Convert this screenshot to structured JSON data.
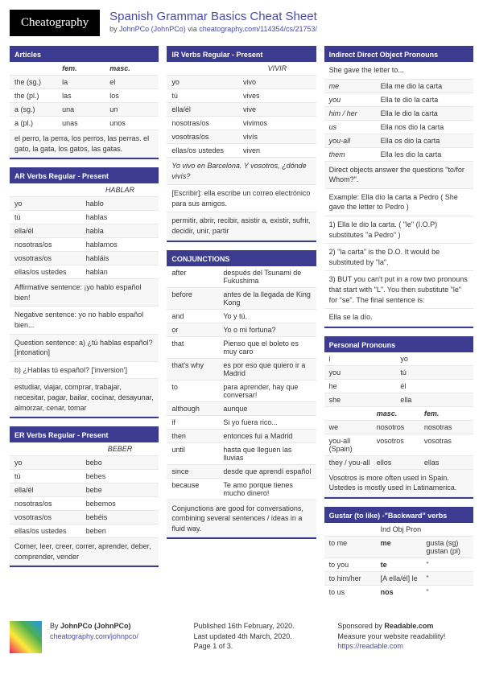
{
  "logo": "Cheatography",
  "title": "Spanish Grammar Basics Cheat Sheet",
  "byline_by": "by ",
  "author": "JohnPCo (JohnPCo)",
  "byline_via": " via ",
  "url": "cheatography.com/114354/cs/21753/",
  "col1": {
    "articles": {
      "title": "Articles",
      "head_fem": "fem.",
      "head_masc": "masc.",
      "rows": [
        {
          "a": "the (sg.)",
          "b": "la",
          "c": "el"
        },
        {
          "a": "the (pl.)",
          "b": "las",
          "c": "los"
        },
        {
          "a": "a (sg.)",
          "b": "una",
          "c": "un"
        },
        {
          "a": "a (pl.)",
          "b": "unas",
          "c": "unos"
        }
      ],
      "note": "el perro, la perra, los perros, las perras. el gato, la gata, los gatos, las gatas."
    },
    "ar": {
      "title": "AR Verbs Regular - Present",
      "stem": "HABLAR",
      "rows": [
        {
          "a": "yo",
          "b": "hablo"
        },
        {
          "a": "tú",
          "b": "hablas"
        },
        {
          "a": "ella/él",
          "b": "habla"
        },
        {
          "a": "nosotras/os",
          "b": "hablamos"
        },
        {
          "a": "vosotras/os",
          "b": "habláis"
        },
        {
          "a": "ellas/os ustedes",
          "b": "hablan"
        }
      ],
      "notes": [
        "Affirmative sentence: ¡yo hablo español bien!",
        "Negative sentence: yo no hablo español bien...",
        "Question sentence: a) ¿tú hablas español? [intonation]",
        "b) ¿Hablas tú español? ['inversion']"
      ],
      "footer": "estudiar, viajar, comprar, trabajar, necesitar, pagar, bailar, cocinar, desayunar, almorzar, cenar, tomar"
    },
    "er": {
      "title": "ER Verbs Regular - Present",
      "stem": "BEBER",
      "rows": [
        {
          "a": "yo",
          "b": "bebo"
        },
        {
          "a": "tú",
          "b": "bebes"
        },
        {
          "a": "ella/él",
          "b": "bebe"
        },
        {
          "a": "nosotras/os",
          "b": "bebemos"
        },
        {
          "a": "vosotras/os",
          "b": "bebéis"
        },
        {
          "a": "ellas/os ustedes",
          "b": "beben"
        }
      ],
      "footer": "Comer, leer, creer, correr, aprender, deber, comprender, vender"
    }
  },
  "col2": {
    "ir": {
      "title": "IR Verbs Regular - Present",
      "stem": "VIVIR",
      "rows": [
        {
          "a": "yo",
          "b": "vivo"
        },
        {
          "a": "tú",
          "b": "vives"
        },
        {
          "a": "ella/él",
          "b": "vive"
        },
        {
          "a": "nosotras/os",
          "b": "vivimos"
        },
        {
          "a": "vosotras/os",
          "b": "vivís"
        },
        {
          "a": "ellas/os ustedes",
          "b": "viven"
        }
      ],
      "notes": [
        "Yo vivo en Barcelona. Y vosotros, ¿dónde vivís?",
        "[Escribir]: ella escribe un correo electrónico para sus amigos."
      ],
      "footer": "permitir, abrir, recibir, asistir a, existir, sufrir, decidir, unir, partir"
    },
    "conj": {
      "title": "CONJUNCTIONS",
      "rows": [
        {
          "a": "after",
          "b": "después del Tsunami de Fukushima"
        },
        {
          "a": "before",
          "b": "antes de la llegada de King Kong"
        },
        {
          "a": "and",
          "b": "Yo y tú."
        },
        {
          "a": "or",
          "b": "Yo o mi fortuna?"
        },
        {
          "a": "that",
          "b": "Pienso que el boleto es muy caro"
        },
        {
          "a": "that's why",
          "b": "es por eso que quiero ir a Madrid"
        },
        {
          "a": "to",
          "b": "para aprender, hay que conversar!"
        },
        {
          "a": "although",
          "b": "aunque"
        },
        {
          "a": "if",
          "b": "Si yo fuera rico..."
        },
        {
          "a": "then",
          "b": "entonces fui a Madrid"
        },
        {
          "a": "until",
          "b": "hasta que lleguen las lluvias"
        },
        {
          "a": "since",
          "b": "desde que aprendí español"
        },
        {
          "a": "because",
          "b": "Te amo porque tienes mucho dinero!"
        }
      ],
      "footer": "Conjunctions are good for conversations, combining several sentences / ideas in a fluid way."
    }
  },
  "col3": {
    "idop": {
      "title": "Indirect Direct Object Pronouns",
      "lead": "She gave the letter to...",
      "rows": [
        {
          "a": "me",
          "b": "Ella me dio la carta"
        },
        {
          "a": "you",
          "b": "Ella te dio la carta"
        },
        {
          "a": "him / her",
          "b": "Ella le dio la carta"
        },
        {
          "a": "us",
          "b": "Ella nos dio la carta"
        },
        {
          "a": "you-all",
          "b": "Ella os dio la carta"
        },
        {
          "a": "them",
          "b": "Ella les dio la carta"
        }
      ],
      "notes": [
        "Direct objects answer the questions \"to/for Whom?\".",
        "Example: Ella dío la carta a Pedro ( She gave the letter to Pedro )",
        "1) Ella le dio la carta. ( \"le\" (I.O.P) substitutes \"a Pedro\" )",
        "2) \"la carta\" is the D.O. It would be substituted by \"la\".",
        "3) BUT you can't put in a row two pronouns that start with \"L\". You then substitute \"le\" for \"se\". The final sentence is:",
        "Ella se la dío."
      ]
    },
    "pp": {
      "title": "Personal Pronouns",
      "rows1": [
        {
          "a": "i",
          "b": "yo"
        },
        {
          "a": "you",
          "b": "tú"
        },
        {
          "a": "he",
          "b": "él"
        },
        {
          "a": "she",
          "b": "ella"
        }
      ],
      "head_masc": "masc.",
      "head_fem": "fem.",
      "rows2": [
        {
          "a": "we",
          "b": "nosotros",
          "c": "nosotras"
        },
        {
          "a": "you-all (Spain)",
          "b": "vosotros",
          "c": "vosotras"
        },
        {
          "a": "they / you-all",
          "b": "ellos",
          "c": "ellas"
        }
      ],
      "footer": "Vosotros is more often used in Spain. Ustedes is mostly used in Latinamerica."
    },
    "gustar": {
      "title": "Gustar (to like) -\"Backward\" verbs",
      "head": "Ind Obj Pron",
      "rows": [
        {
          "a": "to me",
          "b": "me",
          "c": "gusta (sg) gustan (pl)"
        },
        {
          "a": "to you",
          "b": "te",
          "c": "\""
        },
        {
          "a": "to him/her",
          "b": "[A ella/él] le",
          "c": "\""
        },
        {
          "a": "to us",
          "b": "nos",
          "c": "\""
        }
      ]
    }
  },
  "footer": {
    "author_by": "By ",
    "author": "JohnPCo (JohnPCo)",
    "author_url": "cheatography.com/johnpco/",
    "pub": "Published 16th February, 2020.",
    "upd": "Last updated 4th March, 2020.",
    "page": "Page 1 of 3.",
    "sponsor1": "Sponsored by ",
    "sponsor_name": "Readable.com",
    "sponsor2": "Measure your website readability!",
    "sponsor_url": "https://readable.com"
  }
}
